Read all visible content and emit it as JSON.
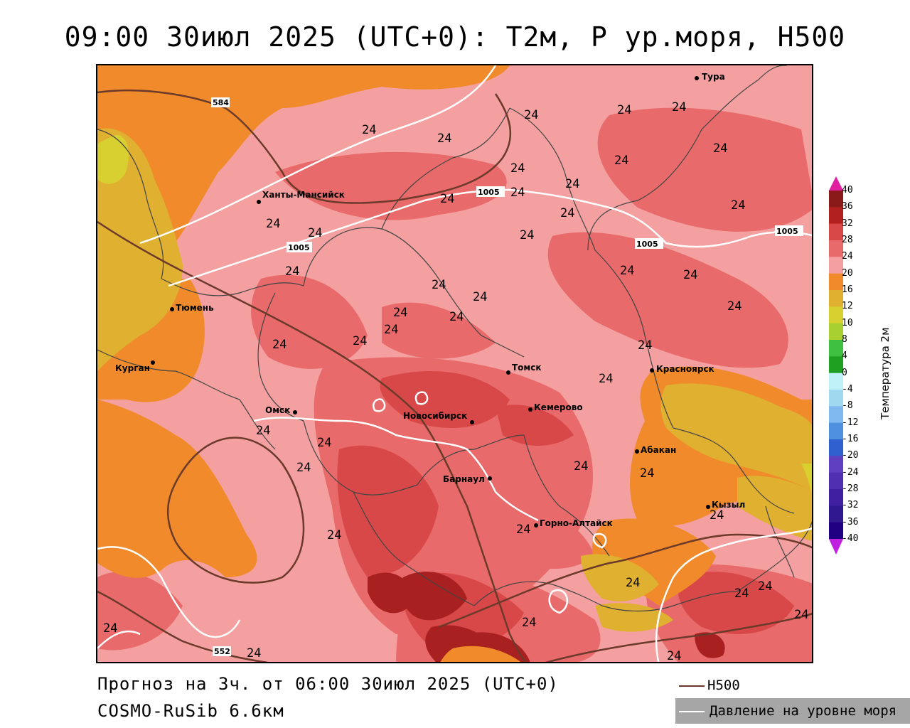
{
  "title": "09:00 30июл 2025 (UTC+0): T2м, P ур.моря, H500",
  "footer": {
    "forecast": "Прогноз на 3ч. от 06:00 30июл 2025 (UTC+0)",
    "model": "COSMO-RuSib 6.6км"
  },
  "legend": {
    "h500": "H500",
    "pressure": "Давление на уровне моря",
    "h500_color": "#6b3a2a",
    "pressure_color": "#ffffff"
  },
  "colorbar": {
    "title": "Температура 2м",
    "ticks": [
      "40",
      "36",
      "32",
      "28",
      "24",
      "20",
      "16",
      "12",
      "10",
      "8",
      "4",
      "0",
      "-4",
      "-8",
      "-12",
      "-16",
      "-20",
      "-24",
      "-28",
      "-32",
      "-36",
      "-40"
    ],
    "colors": [
      "#8a1a1a",
      "#b32020",
      "#d84848",
      "#e86a6a",
      "#f4a0a0",
      "#f08a2a",
      "#e0b030",
      "#d8d030",
      "#a8d030",
      "#40c040",
      "#20a020",
      "#c0f0f8",
      "#a0d8f0",
      "#80b8f0",
      "#5090e0",
      "#3060d0",
      "#6040c0",
      "#5030b0",
      "#4020a0",
      "#301890",
      "#200080"
    ],
    "top_arrow": "#e020a0",
    "bottom_arrow": "#c020e0"
  },
  "cities": [
    {
      "name": "Тура"
    },
    {
      "name": "Ханты-Мансийск"
    },
    {
      "name": "Тюмень"
    },
    {
      "name": "Курган"
    },
    {
      "name": "Омск"
    },
    {
      "name": "Томск"
    },
    {
      "name": "Красноярск"
    },
    {
      "name": "Кемерово"
    },
    {
      "name": "Новосибирск"
    },
    {
      "name": "Абакан"
    },
    {
      "name": "Барнаул"
    },
    {
      "name": "Кызыл"
    },
    {
      "name": "Горно-Алтайск"
    }
  ],
  "isolines": {
    "temp_label": "24",
    "pressure_1005": "1005",
    "h500_584": "584",
    "h500_552": "552"
  },
  "map_colors": {
    "t24": "#f4a0a0",
    "t28": "#e86a6a",
    "t32": "#d84848",
    "t36": "#a82020",
    "t20": "#f08a2a",
    "t16": "#e0b030",
    "t12": "#d8c830",
    "border": "#444444"
  }
}
